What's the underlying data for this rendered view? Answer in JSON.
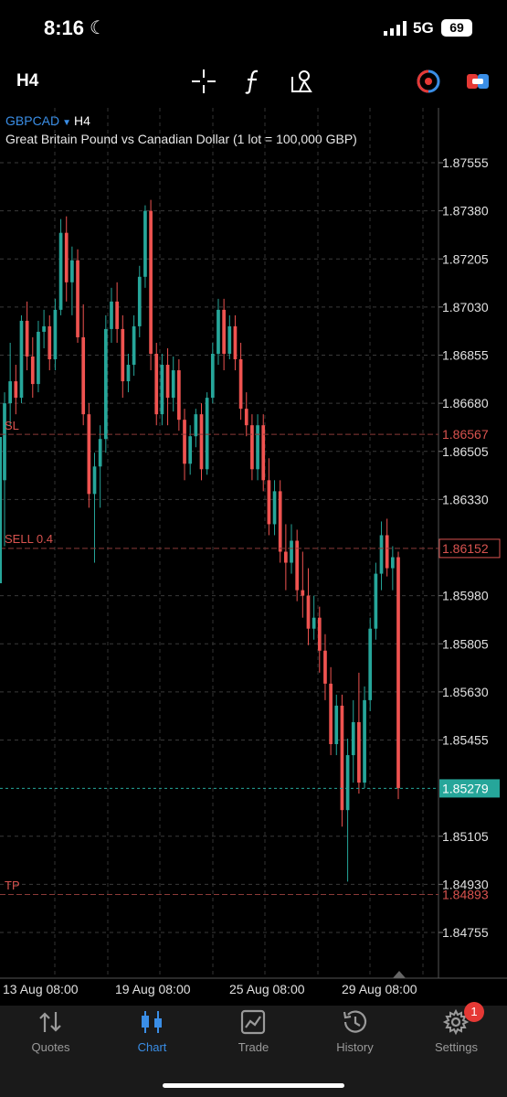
{
  "status_bar": {
    "time": "8:16",
    "network": "5G",
    "battery": "69"
  },
  "toolbar": {
    "timeframe": "H4"
  },
  "chart": {
    "symbol": "GBPCAD",
    "timeframe": "H4",
    "description": "Great Britain Pound vs Canadian Dollar (1 lot = 100,000 GBP)",
    "sl_label": "SL",
    "sell_label": "SELL 0.4",
    "tp_label": "TP",
    "sl_price": "1.86567",
    "sell_price": "1.86152",
    "current_price": "1.85279",
    "tp_price": "1.84893",
    "colors": {
      "up": "#26a69a",
      "down": "#ef5350",
      "level": "#d9534f",
      "bid_line": "#26a69a"
    }
  },
  "chart_data": {
    "type": "candlestick",
    "symbol": "GBPCAD",
    "timeframe": "H4",
    "y_ticks": [
      "1.87555",
      "1.87380",
      "1.87205",
      "1.87030",
      "1.86855",
      "1.86680",
      "1.86505",
      "1.86330",
      "1.85980",
      "1.85805",
      "1.85630",
      "1.85455",
      "1.85105",
      "1.84930",
      "1.84755"
    ],
    "y_range": [
      1.847,
      1.8775
    ],
    "x_ticks": [
      "13 Aug 08:00",
      "19 Aug 08:00",
      "25 Aug 08:00",
      "29 Aug 08:00"
    ],
    "levels": {
      "sl": 1.86567,
      "sell": 1.86152,
      "bid": 1.85279,
      "tp": 1.84893
    },
    "grid": true,
    "candles": [
      [
        1.864,
        1.8672,
        1.8616,
        1.8668
      ],
      [
        1.8668,
        1.869,
        1.866,
        1.8676
      ],
      [
        1.8676,
        1.8682,
        1.8664,
        1.867
      ],
      [
        1.867,
        1.87,
        1.8668,
        1.8698
      ],
      [
        1.8698,
        1.8705,
        1.868,
        1.8685
      ],
      [
        1.8685,
        1.8692,
        1.867,
        1.8675
      ],
      [
        1.8675,
        1.8698,
        1.8672,
        1.8694
      ],
      [
        1.8694,
        1.8702,
        1.8688,
        1.8696
      ],
      [
        1.8696,
        1.87,
        1.868,
        1.8684
      ],
      [
        1.8684,
        1.8706,
        1.868,
        1.8702
      ],
      [
        1.8702,
        1.8735,
        1.87,
        1.873
      ],
      [
        1.873,
        1.8736,
        1.8705,
        1.8712
      ],
      [
        1.8712,
        1.8725,
        1.87,
        1.872
      ],
      [
        1.872,
        1.8724,
        1.869,
        1.8692
      ],
      [
        1.8692,
        1.8704,
        1.866,
        1.8664
      ],
      [
        1.8664,
        1.8668,
        1.863,
        1.8635
      ],
      [
        1.8635,
        1.865,
        1.861,
        1.8645
      ],
      [
        1.8645,
        1.866,
        1.863,
        1.8655
      ],
      [
        1.8655,
        1.87,
        1.865,
        1.8695
      ],
      [
        1.8695,
        1.871,
        1.869,
        1.8705
      ],
      [
        1.8705,
        1.8712,
        1.869,
        1.8695
      ],
      [
        1.8695,
        1.87,
        1.867,
        1.8676
      ],
      [
        1.8676,
        1.8686,
        1.8672,
        1.8682
      ],
      [
        1.8682,
        1.87,
        1.8678,
        1.8696
      ],
      [
        1.8696,
        1.8718,
        1.8692,
        1.8714
      ],
      [
        1.8714,
        1.874,
        1.871,
        1.8738
      ],
      [
        1.8738,
        1.8742,
        1.868,
        1.8686
      ],
      [
        1.8686,
        1.869,
        1.866,
        1.8664
      ],
      [
        1.8664,
        1.8686,
        1.866,
        1.8682
      ],
      [
        1.8682,
        1.8688,
        1.866,
        1.867
      ],
      [
        1.867,
        1.8685,
        1.8665,
        1.868
      ],
      [
        1.868,
        1.8684,
        1.8658,
        1.8662
      ],
      [
        1.8662,
        1.8666,
        1.864,
        1.8646
      ],
      [
        1.8646,
        1.866,
        1.8642,
        1.8656
      ],
      [
        1.8656,
        1.8666,
        1.8652,
        1.8664
      ],
      [
        1.8664,
        1.8668,
        1.864,
        1.8644
      ],
      [
        1.8644,
        1.8672,
        1.8642,
        1.867
      ],
      [
        1.867,
        1.869,
        1.8668,
        1.8686
      ],
      [
        1.8686,
        1.8706,
        1.8682,
        1.8702
      ],
      [
        1.8702,
        1.8706,
        1.868,
        1.8686
      ],
      [
        1.8686,
        1.87,
        1.8684,
        1.8696
      ],
      [
        1.8696,
        1.87,
        1.868,
        1.8684
      ],
      [
        1.8684,
        1.869,
        1.8662,
        1.8666
      ],
      [
        1.8666,
        1.8672,
        1.8656,
        1.866
      ],
      [
        1.866,
        1.8664,
        1.864,
        1.8644
      ],
      [
        1.8644,
        1.8664,
        1.864,
        1.866
      ],
      [
        1.866,
        1.8664,
        1.8636,
        1.864
      ],
      [
        1.864,
        1.8648,
        1.862,
        1.8624
      ],
      [
        1.8624,
        1.864,
        1.862,
        1.8636
      ],
      [
        1.8636,
        1.864,
        1.861,
        1.8614
      ],
      [
        1.8614,
        1.8624,
        1.86,
        1.861
      ],
      [
        1.861,
        1.8624,
        1.8606,
        1.8618
      ],
      [
        1.8618,
        1.8622,
        1.8596,
        1.86
      ],
      [
        1.86,
        1.8614,
        1.859,
        1.8598
      ],
      [
        1.8598,
        1.8608,
        1.858,
        1.8586
      ],
      [
        1.8586,
        1.8598,
        1.8582,
        1.859
      ],
      [
        1.859,
        1.8594,
        1.857,
        1.8578
      ],
      [
        1.8578,
        1.8584,
        1.856,
        1.8566
      ],
      [
        1.8566,
        1.8572,
        1.854,
        1.8544
      ],
      [
        1.8544,
        1.8562,
        1.854,
        1.8558
      ],
      [
        1.8558,
        1.8562,
        1.8514,
        1.852
      ],
      [
        1.852,
        1.8546,
        1.8494,
        1.854
      ],
      [
        1.854,
        1.856,
        1.853,
        1.8552
      ],
      [
        1.8552,
        1.857,
        1.8526,
        1.853
      ],
      [
        1.853,
        1.8565,
        1.8528,
        1.856
      ],
      [
        1.856,
        1.859,
        1.8556,
        1.8586
      ],
      [
        1.8586,
        1.861,
        1.8582,
        1.8606
      ],
      [
        1.8606,
        1.8625,
        1.86,
        1.862
      ],
      [
        1.862,
        1.8626,
        1.8605,
        1.8608
      ],
      [
        1.8608,
        1.8616,
        1.86,
        1.8612
      ],
      [
        1.8612,
        1.8614,
        1.8524,
        1.8528
      ]
    ]
  },
  "tabs": [
    {
      "label": "Quotes"
    },
    {
      "label": "Chart"
    },
    {
      "label": "Trade"
    },
    {
      "label": "History"
    },
    {
      "label": "Settings"
    }
  ],
  "settings_badge": "1"
}
